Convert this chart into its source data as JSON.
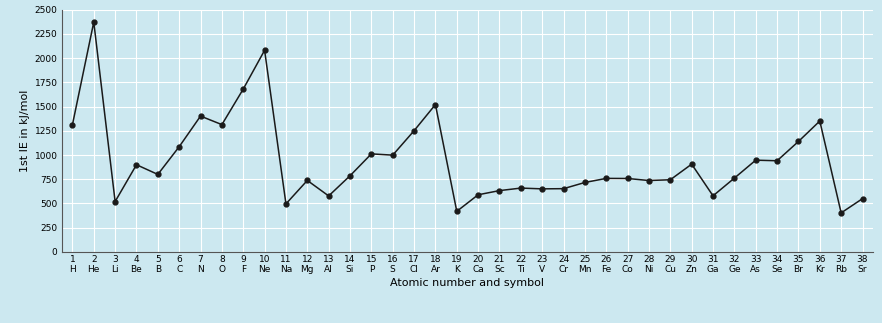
{
  "atomic_numbers": [
    1,
    2,
    3,
    4,
    5,
    6,
    7,
    8,
    9,
    10,
    11,
    12,
    13,
    14,
    15,
    16,
    17,
    18,
    19,
    20,
    21,
    22,
    23,
    24,
    25,
    26,
    27,
    28,
    29,
    30,
    31,
    32,
    33,
    34,
    35,
    36,
    37,
    38
  ],
  "symbols": [
    "H",
    "He",
    "Li",
    "Be",
    "B",
    "C",
    "N",
    "O",
    "F",
    "Ne",
    "Na",
    "Mg",
    "Al",
    "Si",
    "P",
    "S",
    "Cl",
    "Ar",
    "K",
    "Ca",
    "Sc",
    "Ti",
    "V",
    "Cr",
    "Mn",
    "Fe",
    "Co",
    "Ni",
    "Cu",
    "Zn",
    "Ga",
    "Ge",
    "As",
    "Se",
    "Br",
    "Kr",
    "Rb",
    "Sr"
  ],
  "ie_values": [
    1312,
    2372,
    520,
    900,
    800,
    1086,
    1402,
    1314,
    1681,
    2081,
    496,
    738,
    578,
    786,
    1012,
    999,
    1251,
    1521,
    419,
    590,
    633,
    659,
    651,
    653,
    717,
    759,
    758,
    737,
    745,
    906,
    579,
    762,
    947,
    941,
    1140,
    1351,
    403,
    550
  ],
  "xlabel": "Atomic number and symbol",
  "ylabel": "1st IE in kJ/mol",
  "ylim": [
    0,
    2500
  ],
  "yticks": [
    0,
    250,
    500,
    750,
    1000,
    1250,
    1500,
    1750,
    2000,
    2250,
    2500
  ],
  "line_color": "#1a1a1a",
  "marker_color": "#1a1a1a",
  "bg_color": "#cce8f0",
  "plot_bg_color": "#cce8f0",
  "grid_color": "#ffffff",
  "axis_label_fontsize": 8,
  "tick_fontsize": 6.5,
  "marker_size": 3.5,
  "line_width": 1.1
}
